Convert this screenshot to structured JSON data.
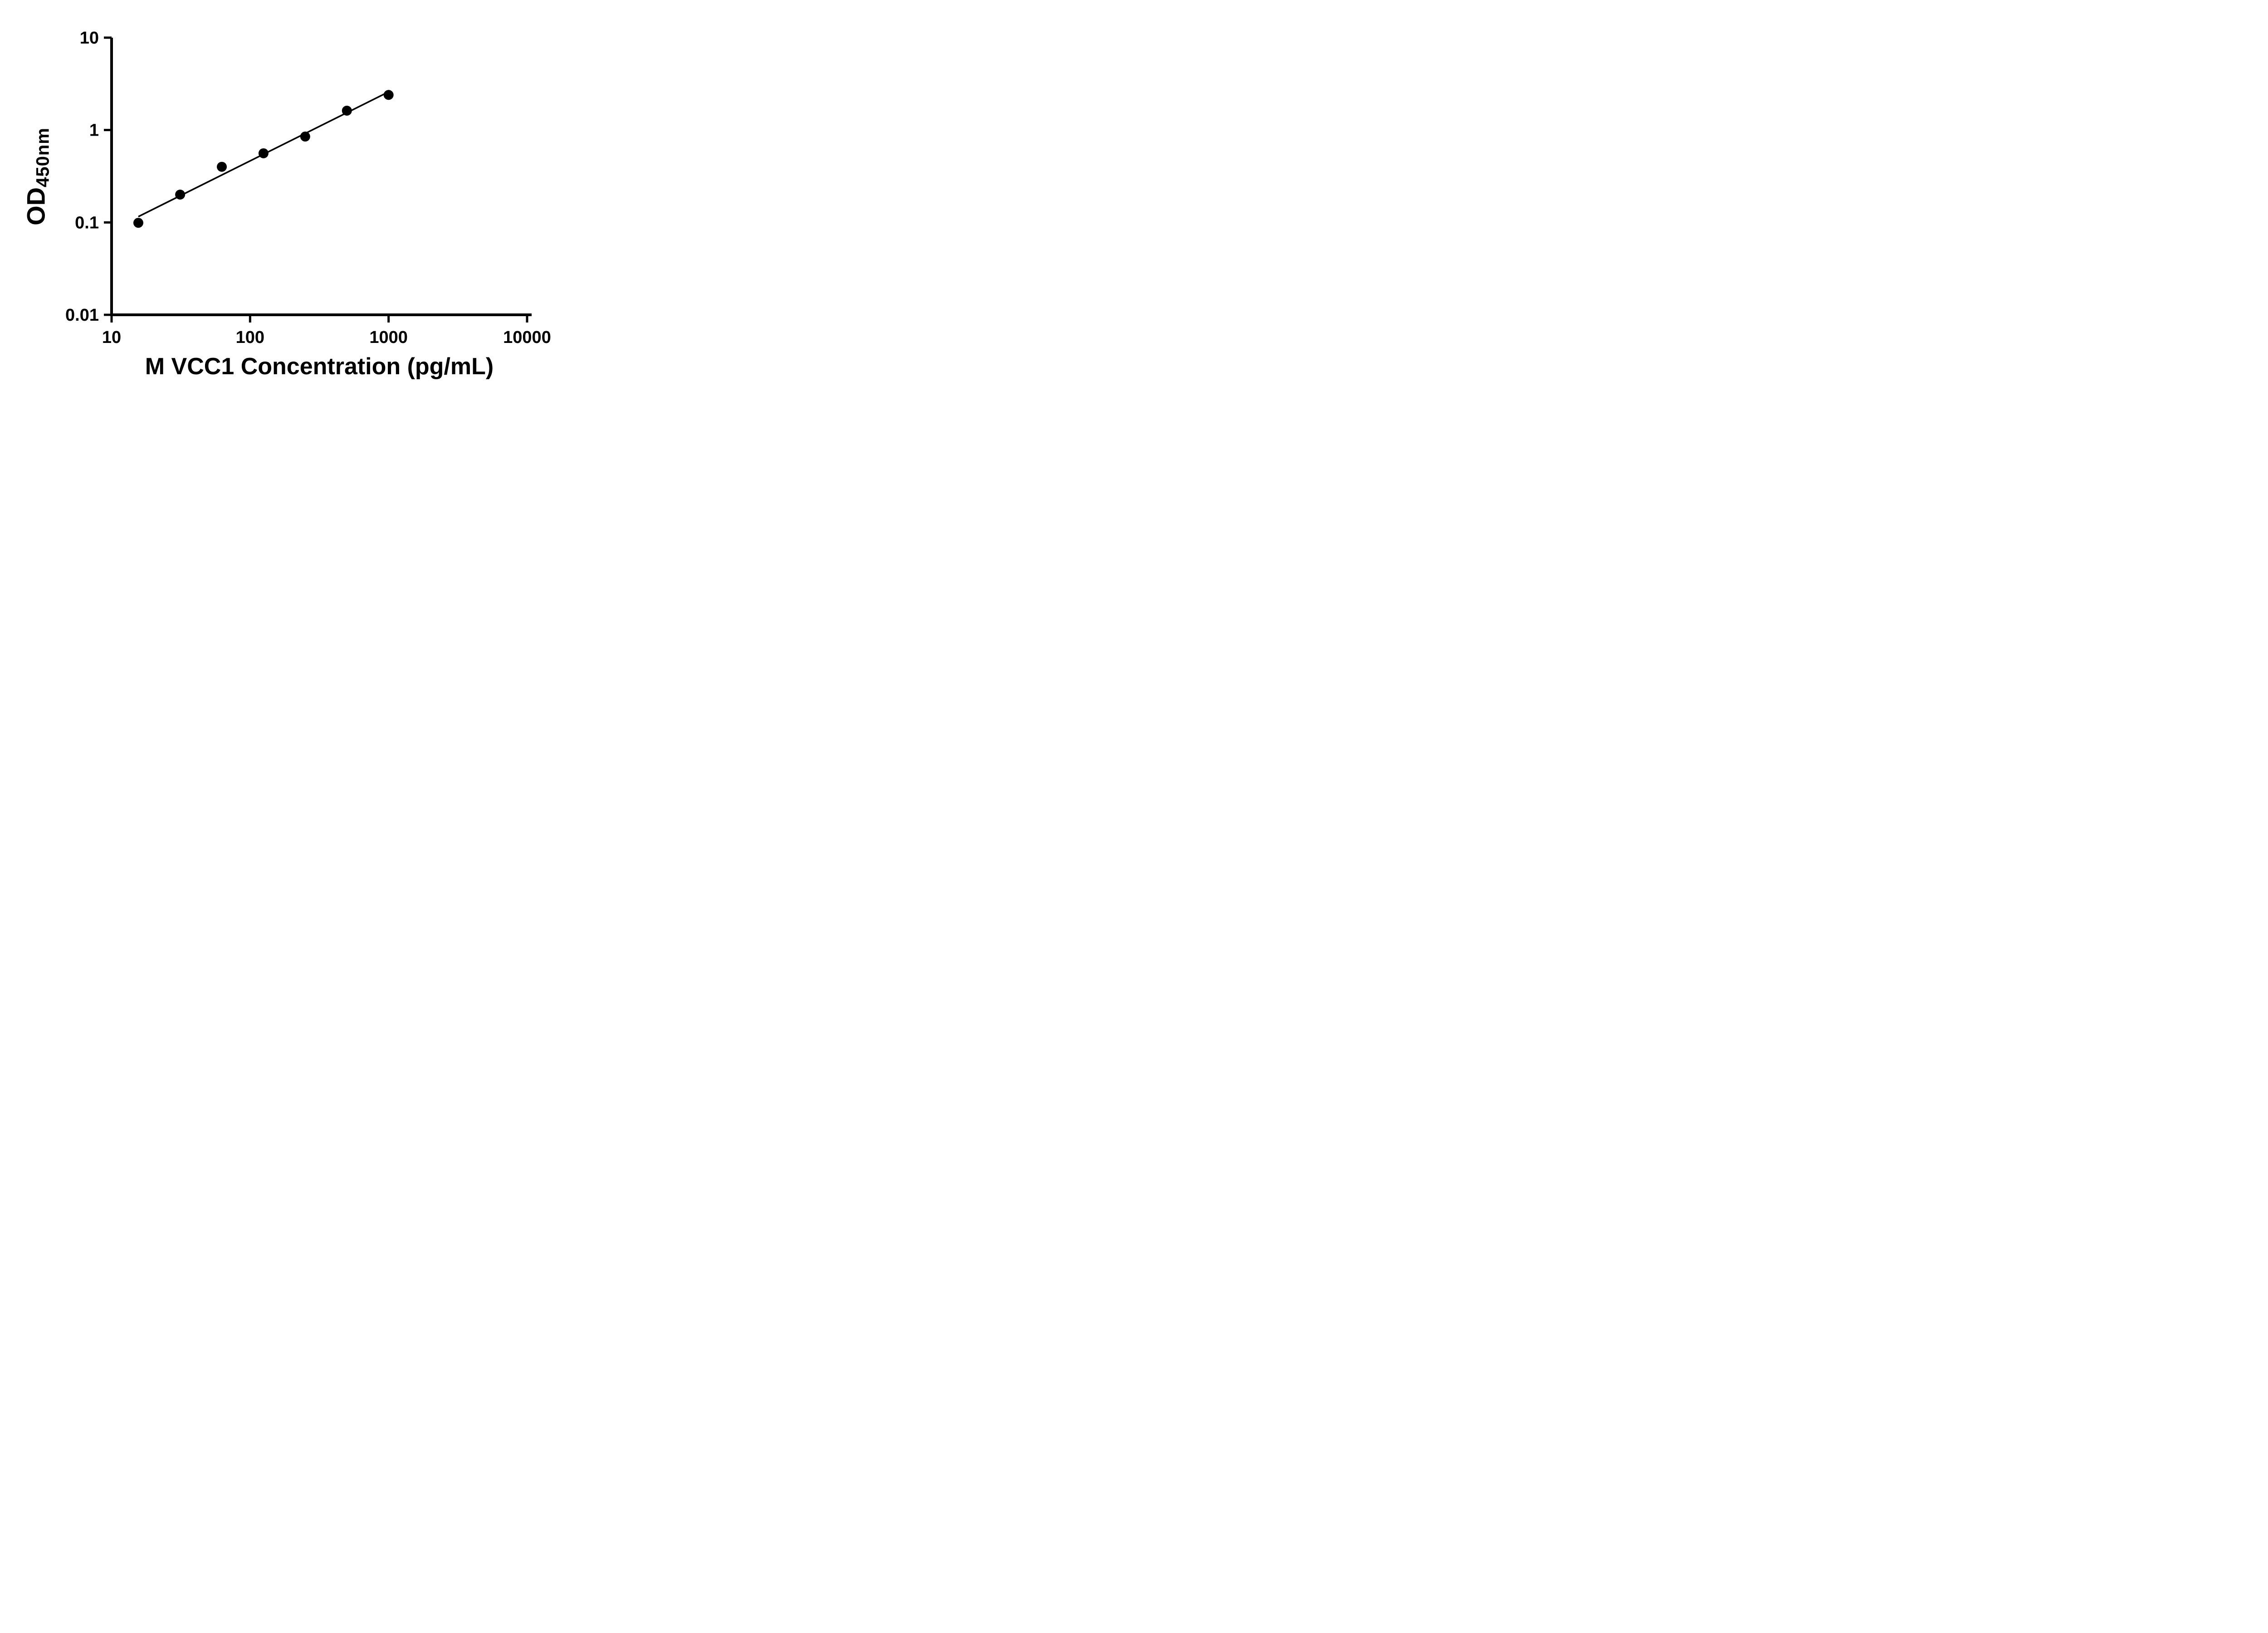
{
  "chart_data": {
    "type": "scatter",
    "title": "",
    "xlabel": "M VCC1 Concentration (pg/mL)",
    "ylabel_main": "OD",
    "ylabel_sub": "450nm",
    "x_scale": "log",
    "y_scale": "log",
    "xlim": [
      10,
      10000
    ],
    "ylim": [
      0.01,
      10
    ],
    "x_ticks": [
      10,
      100,
      1000,
      10000
    ],
    "x_tick_labels": [
      "10",
      "100",
      "1000",
      "10000"
    ],
    "y_ticks": [
      0.01,
      0.1,
      1,
      10
    ],
    "y_tick_labels": [
      "0.01",
      "0.1",
      "1",
      "10"
    ],
    "grid": false,
    "legend": false,
    "trend_line": true,
    "series": [
      {
        "marker": "circle",
        "color": "#000000",
        "x": [
          15.6,
          31.25,
          62.5,
          125,
          250,
          500,
          1000
        ],
        "y": [
          0.099,
          0.2,
          0.4,
          0.56,
          0.85,
          1.62,
          2.4
        ]
      }
    ]
  },
  "colors": {
    "axis": "#000000",
    "marker": "#000000",
    "line": "#000000",
    "background": "#ffffff",
    "text": "#000000"
  }
}
